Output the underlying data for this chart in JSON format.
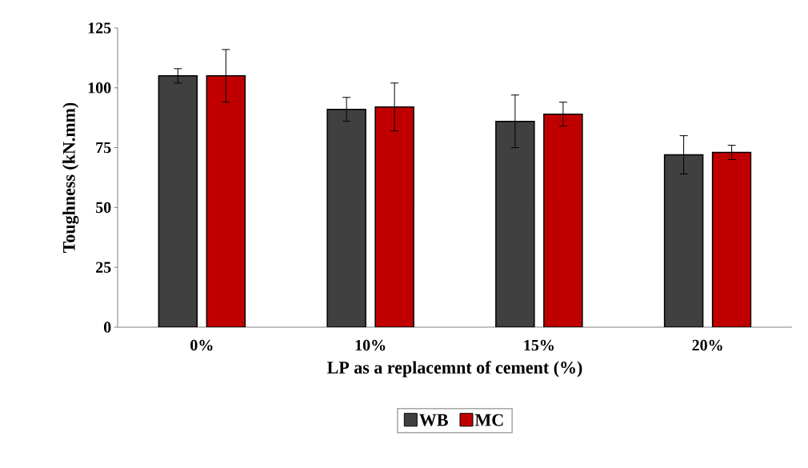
{
  "chart_data": {
    "type": "bar",
    "xlabel": "LP as a replacemnt of cement (%)",
    "ylabel": "Toughness (kN.mm)",
    "categories": [
      "0%",
      "10%",
      "15%",
      "20%"
    ],
    "series": [
      {
        "name": "WB",
        "color": "#404040",
        "values": [
          105,
          91,
          86,
          72
        ],
        "errors": [
          3,
          5,
          11,
          8
        ]
      },
      {
        "name": "MC",
        "color": "#c00000",
        "values": [
          105,
          92,
          89,
          73
        ],
        "errors": [
          11,
          10,
          5,
          3
        ]
      }
    ],
    "ylim": [
      0,
      125
    ],
    "yticks": [
      0,
      25,
      50,
      75,
      100,
      125
    ],
    "legend": "bottom"
  }
}
